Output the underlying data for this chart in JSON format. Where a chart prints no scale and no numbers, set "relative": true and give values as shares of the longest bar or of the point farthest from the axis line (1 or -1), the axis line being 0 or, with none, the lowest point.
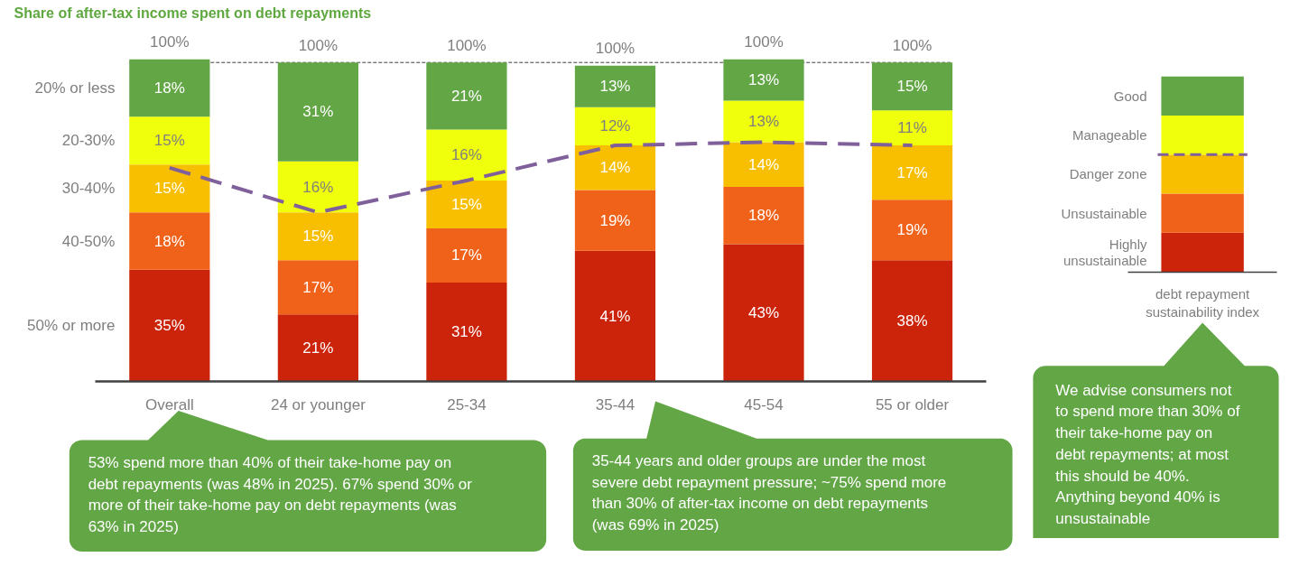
{
  "chart_data": [
    {
      "type": "bar",
      "stacked": true,
      "title": "Share of after-tax income spent on debt repayments",
      "categories": [
        "Overall",
        "24 or younger",
        "25-34",
        "35-44",
        "45-54",
        "55 or older"
      ],
      "series": [
        {
          "name": "50% or more",
          "color": "#cc230b",
          "values": [
            35,
            21,
            31,
            41,
            43,
            38
          ],
          "value_labels": [
            "35%",
            "21%",
            "31%",
            "41%",
            "43%",
            "38%"
          ]
        },
        {
          "name": "40-50%",
          "color": "#f06119",
          "values": [
            18,
            17,
            17,
            19,
            18,
            19
          ],
          "value_labels": [
            "18%",
            "17%",
            "17%",
            "19%",
            "18%",
            "19%"
          ]
        },
        {
          "name": "30-40%",
          "color": "#f8be00",
          "values": [
            15,
            15,
            15,
            14,
            14,
            17
          ],
          "value_labels": [
            "15%",
            "15%",
            "15%",
            "14%",
            "14%",
            "17%"
          ]
        },
        {
          "name": "20-30%",
          "color": "#f0ff0c",
          "values": [
            15,
            16,
            16,
            12,
            13,
            11
          ],
          "value_labels": [
            "15%",
            "16%",
            "16%",
            "12%",
            "13%",
            "11%"
          ]
        },
        {
          "name": "20% or less",
          "color": "#62a646",
          "values": [
            18,
            31,
            21,
            13,
            13,
            15
          ],
          "value_labels": [
            "18%",
            "31%",
            "21%",
            "13%",
            "13%",
            "15%"
          ]
        },
        {
          "type": "line",
          "color": "#80609a",
          "line_style": "dashed",
          "values": [
            67,
            53,
            63,
            74,
            75,
            74
          ]
        }
      ],
      "totals": [
        "100%",
        "100%",
        "100%",
        "100%",
        "100%",
        "100%"
      ],
      "ref_lines": [
        {
          "axis": "y",
          "value": 100,
          "color": "#404040",
          "line_style": "dashed"
        }
      ],
      "annotations": [
        "53% spend more than 40% of their take-home pay on debt repayments (was 48% in 2025). 67% spend 30% or more of their take-home pay on debt repayments (was 63% in 2025)",
        "35-44 years and older groups are under the most severe debt repayment pressure; ~75% spend more than 30% of after-tax income on debt repayments (was 69% in 2025)"
      ]
    },
    {
      "type": "bar",
      "stacked": true,
      "relative": true,
      "categories": [
        "debt repayment sustainability index"
      ],
      "series": [
        {
          "name": "Highly unsustainable",
          "color": "#cc230b",
          "values": [
            0.2
          ]
        },
        {
          "name": "Unsustainable",
          "color": "#f06119",
          "values": [
            0.2
          ]
        },
        {
          "name": "Danger zone",
          "color": "#f8be00",
          "values": [
            0.2
          ]
        },
        {
          "name": "Manageable",
          "color": "#f0ff0c",
          "values": [
            0.2
          ]
        },
        {
          "name": "Good",
          "color": "#62a646",
          "values": [
            0.2
          ]
        }
      ],
      "ref_lines": [
        {
          "axis": "y",
          "value": 0.6,
          "color": "#80609a",
          "line_style": "dashed"
        }
      ],
      "annotations": [
        "We advise consumers not to spend more than 30% of their take-home pay on debt repayments; at most this should be 40%. Anything beyond 40% is unsustainable"
      ]
    }
  ]
}
